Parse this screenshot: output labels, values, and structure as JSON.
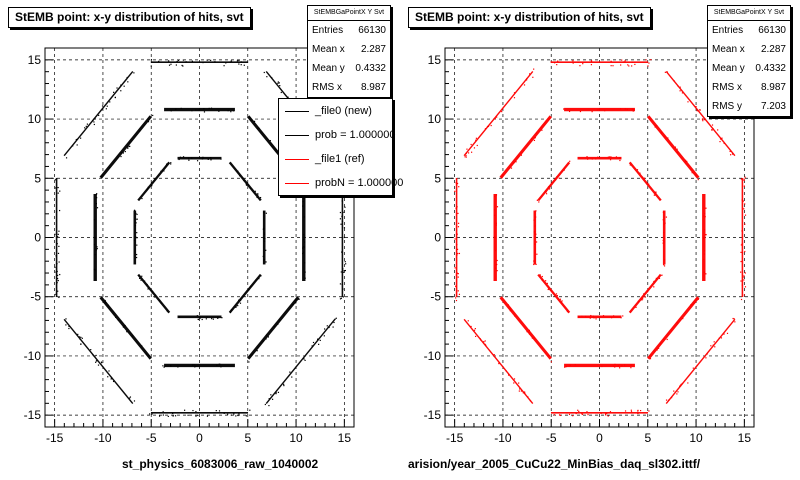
{
  "chart_data": [
    {
      "type": "scatter",
      "title": "StEMB point: x-y distribution of hits, svt",
      "xlabel": "st_physics_6083006_raw_1040002",
      "xlim": [
        -16,
        16
      ],
      "ylim": [
        -16,
        16
      ],
      "xticks": [
        "-15",
        "-10",
        "-5",
        "0",
        "5",
        "10",
        "15"
      ],
      "yticks": [
        "15",
        "10",
        "5",
        "0",
        "-5",
        "-10",
        "-15"
      ],
      "grid": true,
      "color": "#000000",
      "rings_radius": [
        6.7,
        10.8,
        14.8
      ],
      "stats": {
        "header": "StEMBGaPointX Y Svt",
        "rows": [
          {
            "label": "Entries",
            "value": "66130"
          },
          {
            "label": "Mean x",
            "value": "2.287"
          },
          {
            "label": "Mean y",
            "value": "0.4332"
          },
          {
            "label": "RMS x",
            "value": "8.987"
          }
        ]
      },
      "legend": {
        "placement": "top-right",
        "entries": [
          {
            "label": "_file0 (new)",
            "color": "#000000"
          },
          {
            "label": "prob = 1.000000",
            "color": "#000000"
          },
          {
            "label": "_file1 (ref)",
            "color": "#ff0000"
          },
          {
            "label": "probN = 1.000000",
            "color": "#ff0000"
          }
        ]
      }
    },
    {
      "type": "scatter",
      "title": "StEMB point: x-y distribution of hits, svt",
      "xlabel": "arision/year_2005_CuCu22_MinBias_daq_sl302.ittf/",
      "xlim": [
        -16,
        16
      ],
      "ylim": [
        -16,
        16
      ],
      "xticks": [
        "-15",
        "-10",
        "-5",
        "0",
        "5",
        "10",
        "15"
      ],
      "yticks": [
        "15",
        "10",
        "5",
        "0",
        "-5",
        "-10",
        "-15"
      ],
      "grid": true,
      "color": "#ff0000",
      "rings_radius": [
        6.7,
        10.8,
        14.8
      ],
      "stats": {
        "header": "StEMBGaPointX Y Svt",
        "rows": [
          {
            "label": "Entries",
            "value": "66130"
          },
          {
            "label": "Mean x",
            "value": "2.287"
          },
          {
            "label": "Mean y",
            "value": "0.4332"
          },
          {
            "label": "RMS x",
            "value": "8.987"
          },
          {
            "label": "RMS y",
            "value": "7.203"
          }
        ]
      }
    }
  ]
}
